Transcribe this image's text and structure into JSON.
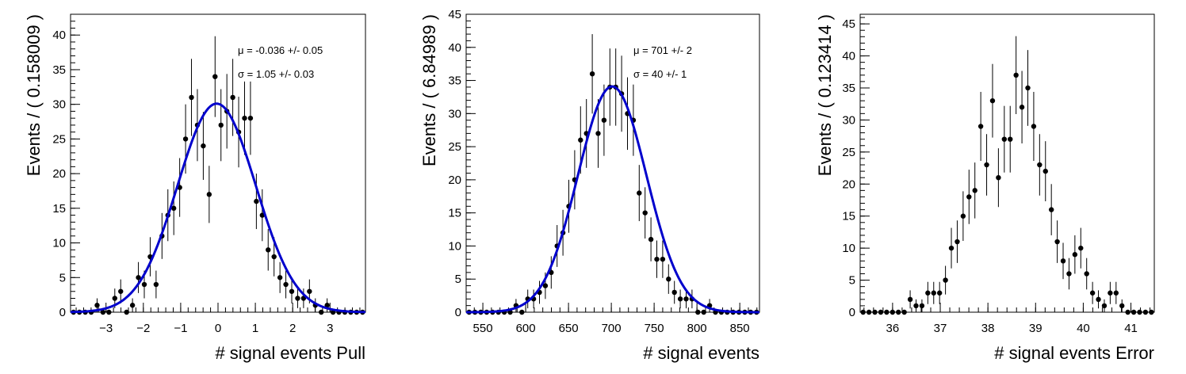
{
  "chart_data": [
    {
      "type": "scatter",
      "xlabel": "# signal events Pull",
      "ylabel": "Events / ( 0.158009 )",
      "xlim": [
        -3.95,
        3.95
      ],
      "ylim": [
        0,
        43
      ],
      "xticks_major": [
        -3,
        -2,
        -1,
        0,
        1,
        2,
        3
      ],
      "xticks_minor_step": 0.2,
      "yticks_major": [
        0,
        5,
        10,
        15,
        20,
        25,
        30,
        35,
        40
      ],
      "yticks_minor_step": 1,
      "bin_start": -3.95,
      "bin_width": 0.158009,
      "values": [
        0,
        0,
        0,
        0,
        1,
        0,
        0,
        2,
        3,
        0,
        1,
        5,
        4,
        8,
        4,
        11,
        14,
        15,
        18,
        25,
        31,
        27,
        24,
        17,
        34,
        27,
        29,
        31,
        26,
        28,
        28,
        16,
        14,
        9,
        8,
        5,
        4,
        3,
        2,
        2,
        3,
        1,
        0,
        1,
        0,
        0,
        0,
        0,
        0,
        0
      ],
      "fit": {
        "mu": -0.036,
        "sigma": 1.05,
        "peak": 30.1
      },
      "annotations": [
        "μ = -0.036 +/- 0.05",
        "σ =  1.05 +/- 0.03"
      ]
    },
    {
      "type": "scatter",
      "xlabel": "# signal events",
      "ylabel": "Events / ( 6.84989 )",
      "xlim": [
        530.5,
        873
      ],
      "ylim": [
        0,
        45
      ],
      "xticks_major": [
        550,
        600,
        650,
        700,
        750,
        800,
        850
      ],
      "xticks_minor_step": 10,
      "yticks_major": [
        0,
        5,
        10,
        15,
        20,
        25,
        30,
        35,
        40,
        45
      ],
      "yticks_minor_step": 1,
      "bin_start": 530.5,
      "bin_width": 6.84989,
      "values": [
        0,
        0,
        0,
        0,
        0,
        0,
        0,
        0,
        1,
        0,
        2,
        2,
        3,
        4,
        6,
        10,
        12,
        16,
        20,
        26,
        27,
        36,
        27,
        29,
        34,
        34,
        33,
        30,
        29,
        18,
        15,
        11,
        8,
        8,
        5,
        3,
        2,
        2,
        2,
        0,
        0,
        1,
        0,
        0,
        0,
        0,
        0,
        0,
        0,
        0
      ],
      "fit": {
        "mu": 701,
        "sigma": 40,
        "peak": 34.1
      },
      "annotations": [
        "μ =  701 +/- 2",
        "σ =  40 +/- 1"
      ]
    },
    {
      "type": "scatter",
      "xlabel": "# signal events Error",
      "ylabel": "Events / ( 0.123414 )",
      "xlim": [
        35.32,
        41.49
      ],
      "ylim": [
        0,
        46.5
      ],
      "xticks_major": [
        36,
        37,
        38,
        39,
        40,
        41
      ],
      "xticks_minor_step": 0.2,
      "yticks_major": [
        0,
        5,
        10,
        15,
        20,
        25,
        30,
        35,
        40,
        45
      ],
      "yticks_minor_step": 1,
      "bin_start": 35.32,
      "bin_width": 0.123414,
      "values": [
        0,
        0,
        0,
        0,
        0,
        0,
        0,
        0,
        2,
        1,
        1,
        3,
        3,
        3,
        5,
        10,
        11,
        15,
        18,
        19,
        29,
        23,
        33,
        21,
        27,
        27,
        37,
        32,
        35,
        29,
        23,
        22,
        16,
        11,
        8,
        6,
        9,
        10,
        6,
        3,
        2,
        1,
        3,
        3,
        1,
        0,
        0,
        0,
        0,
        0
      ],
      "fit": null,
      "annotations": []
    }
  ]
}
